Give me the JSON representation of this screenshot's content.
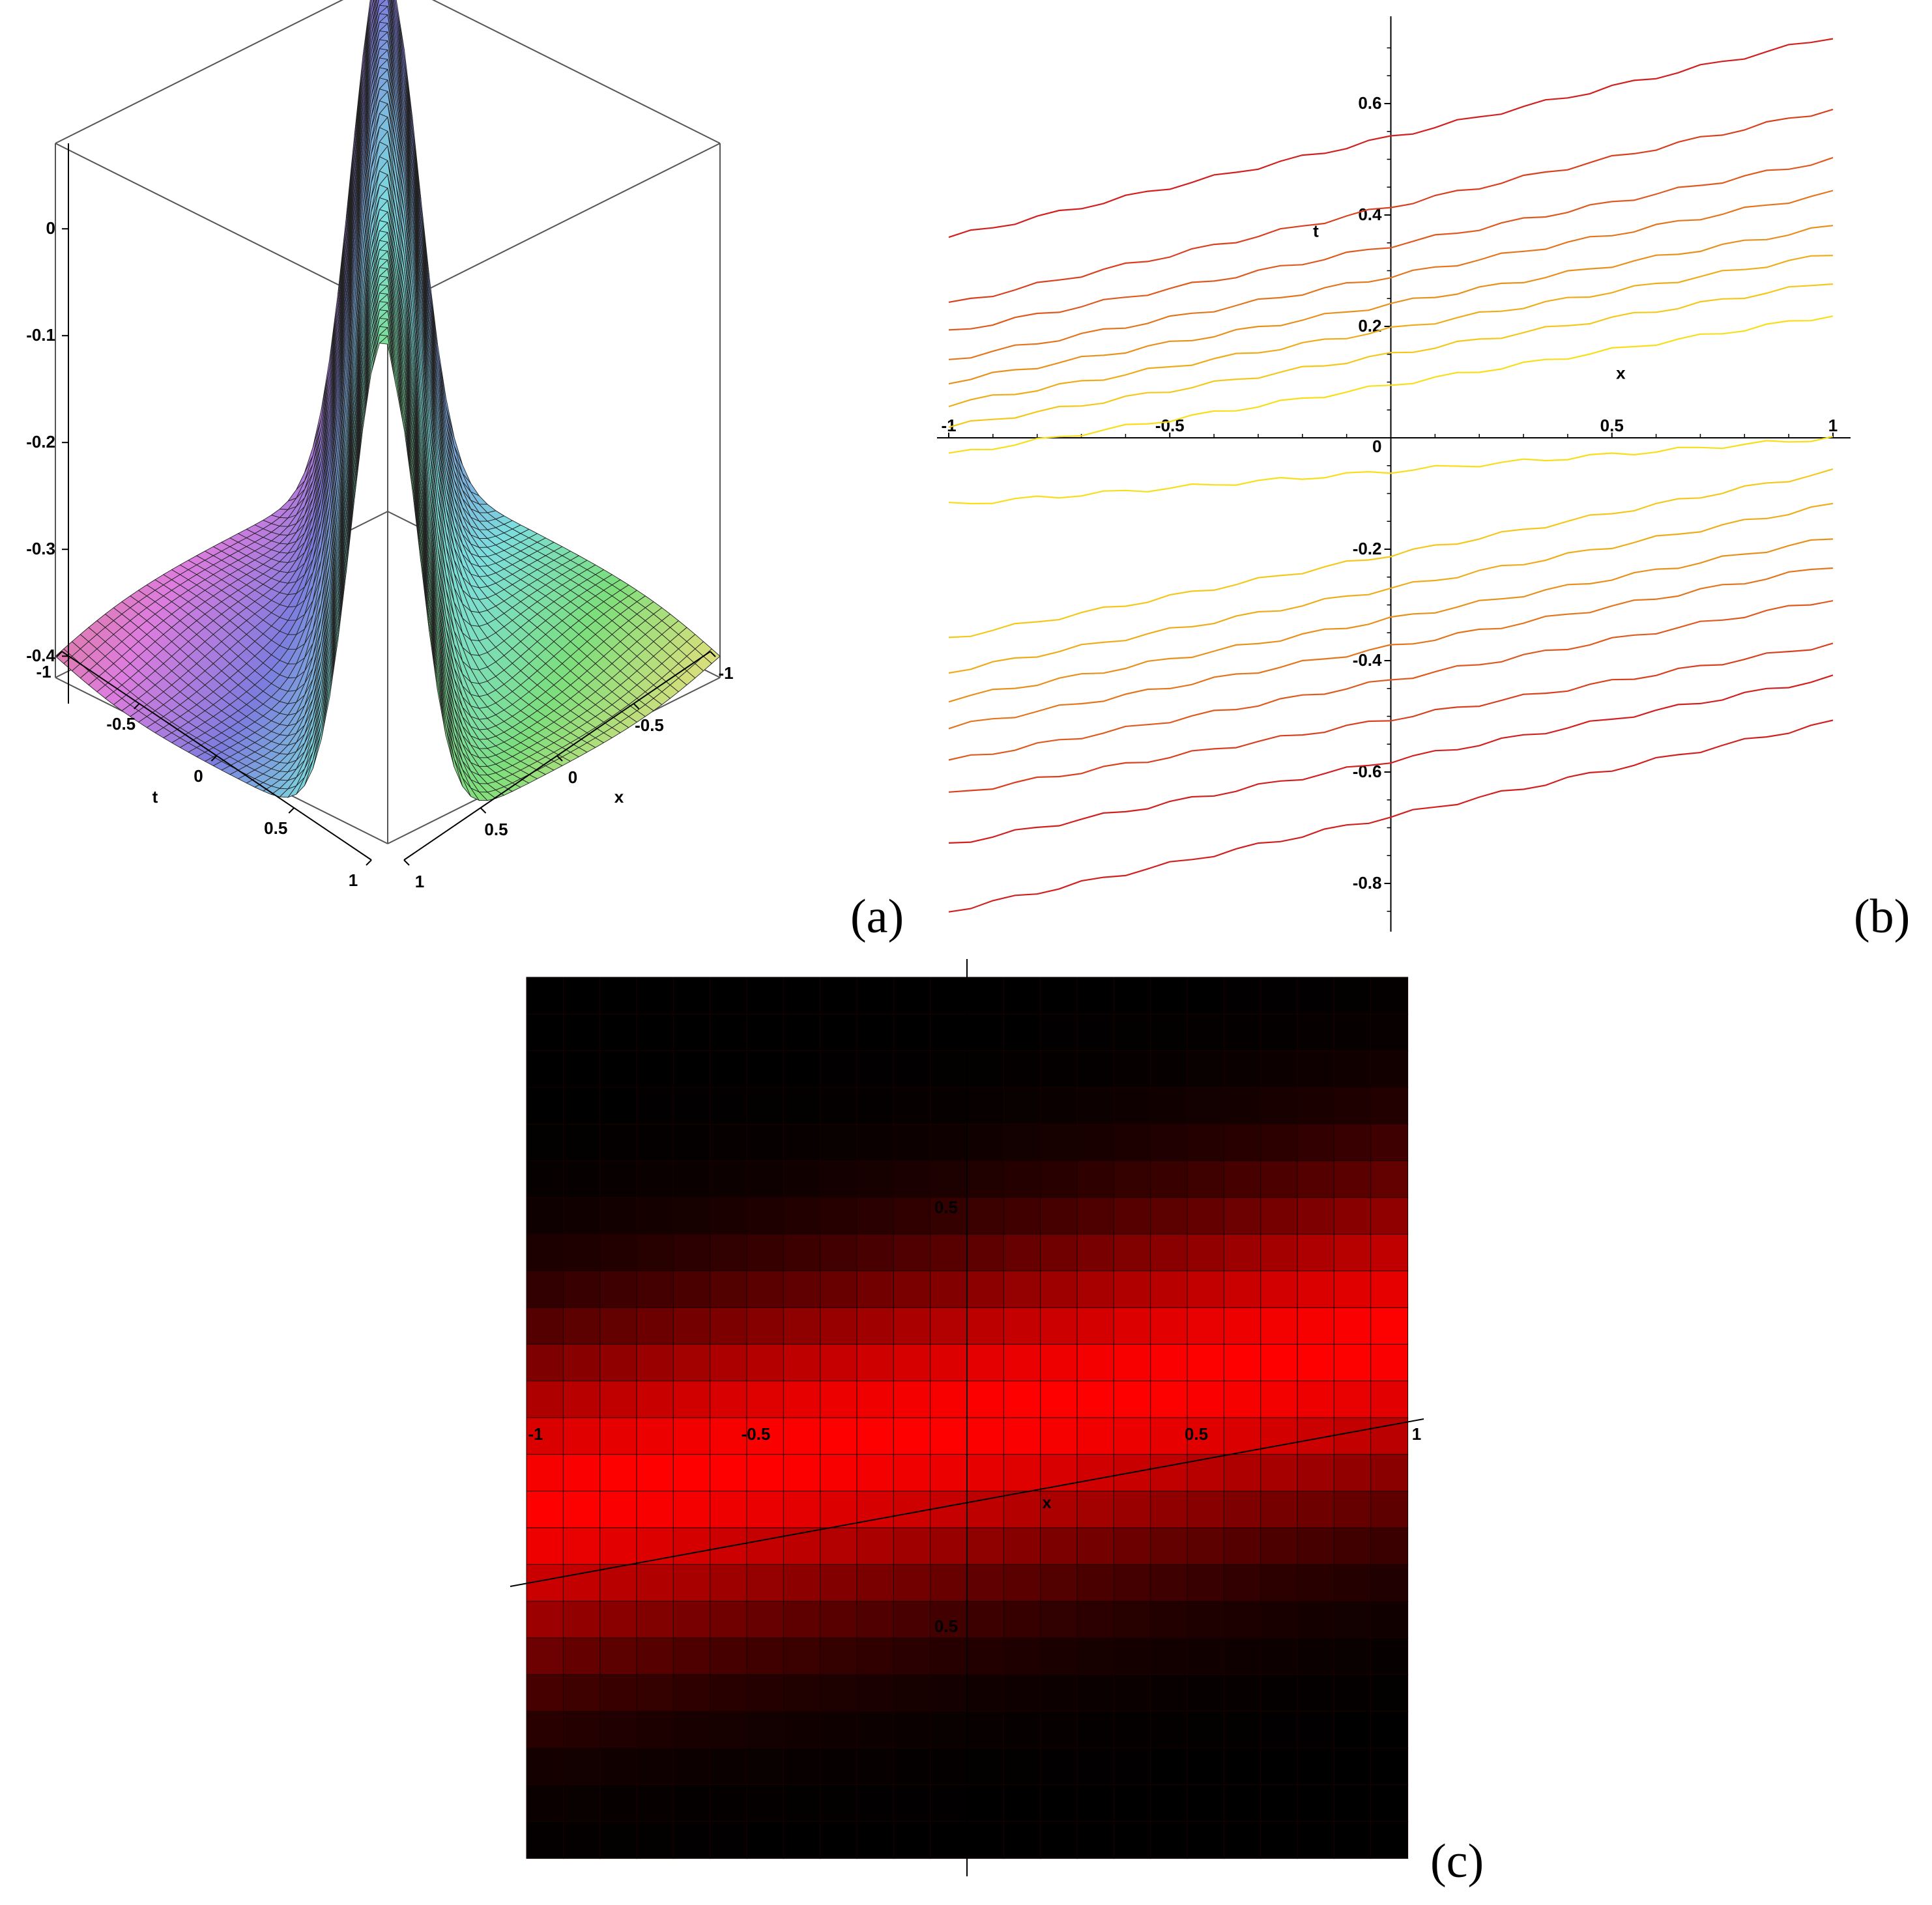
{
  "figure": {
    "labels": {
      "a": "(a)",
      "b": "(b)",
      "c": "(c)"
    }
  },
  "chart_data": [
    {
      "panel": "a",
      "type": "surface",
      "xlabel": "x",
      "ylabel": "t",
      "xticks": [
        "-1",
        "-0.5",
        "0",
        "0.5",
        "1"
      ],
      "yticks": [
        "-1",
        "-0.5",
        "0",
        "0.5",
        "1"
      ],
      "zticks": [
        "0",
        "-0.1",
        "-0.2",
        "-0.3",
        "-0.4"
      ],
      "xlim": [
        -1,
        1
      ],
      "ylim": [
        -1,
        1
      ],
      "zlim": [
        -0.42,
        0.08
      ],
      "grid": "mesh",
      "coloring": "rainbow by position"
    },
    {
      "panel": "b",
      "type": "contour",
      "xlabel": "x",
      "ylabel": "t",
      "xticks": [
        "-1",
        "-0.5",
        "0.5",
        "1"
      ],
      "yticks": [
        "0.6",
        "0.4",
        "0.2",
        "0",
        "-0.2",
        "-0.4",
        "-0.6",
        "-0.8"
      ],
      "xlim": [
        -1,
        1
      ],
      "ylim": [
        -0.85,
        0.72
      ],
      "grid": false,
      "levels": [
        {
          "left": 0.36,
          "right": 0.72,
          "color": "#d21f1f"
        },
        {
          "left": 0.24,
          "right": 0.59,
          "color": "#d8401f"
        },
        {
          "left": 0.19,
          "right": 0.5,
          "color": "#df5a1e"
        },
        {
          "left": 0.14,
          "right": 0.44,
          "color": "#e3761d"
        },
        {
          "left": 0.1,
          "right": 0.38,
          "color": "#e8901c"
        },
        {
          "left": 0.06,
          "right": 0.33,
          "color": "#eeac1b"
        },
        {
          "left": 0.02,
          "right": 0.28,
          "color": "#f4c81a"
        },
        {
          "left": -0.03,
          "right": 0.22,
          "color": "#f8de19"
        },
        {
          "left": -0.12,
          "right": 0.0,
          "color": "#f8de19"
        },
        {
          "left": -0.36,
          "right": -0.06,
          "color": "#f4c81a"
        },
        {
          "left": -0.42,
          "right": -0.12,
          "color": "#eeac1b"
        },
        {
          "left": -0.47,
          "right": -0.18,
          "color": "#e8901c"
        },
        {
          "left": -0.52,
          "right": -0.23,
          "color": "#e3761d"
        },
        {
          "left": -0.58,
          "right": -0.29,
          "color": "#df5a1e"
        },
        {
          "left": -0.64,
          "right": -0.37,
          "color": "#d8401f"
        },
        {
          "left": -0.73,
          "right": -0.43,
          "color": "#d21f1f"
        },
        {
          "left": -0.85,
          "right": -0.51,
          "color": "#d21f1f"
        }
      ]
    },
    {
      "panel": "c",
      "type": "heatmap",
      "xlabel": "x",
      "xticks": [
        "-1",
        "-0.5",
        "0.5",
        "1"
      ],
      "yticks": [
        "0.5",
        "0.5"
      ],
      "xlim": [
        -1,
        1
      ],
      "ylim": [
        -1,
        1
      ],
      "grid": true,
      "grid_cells": 24,
      "ridge": {
        "t_at_x_minus1": -0.2,
        "t_at_x_plus1": 0.18,
        "width": 0.38
      },
      "colors": {
        "low": "#000000",
        "high": "#ff0000"
      }
    }
  ]
}
